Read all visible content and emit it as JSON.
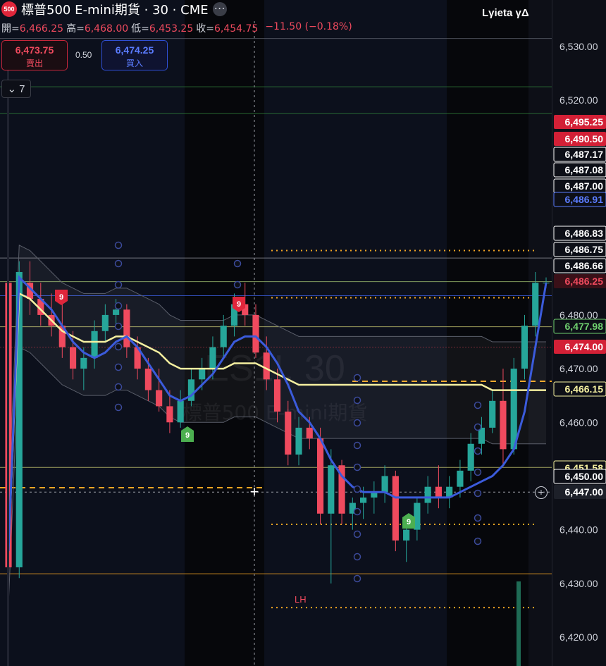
{
  "header": {
    "symbol_badge": "500",
    "title": "標普500 E-mini期貨 · 30 · CME",
    "top_right": "Lγieta γΔ"
  },
  "ohlc": {
    "open_label": "開=",
    "open": "6,466.25",
    "high_label": "高=",
    "high": "6,468.00",
    "low_label": "低=",
    "low": "6,453.25",
    "close_label": "收=",
    "close": "6,454.75",
    "change": "−11.50 (−0.18%)"
  },
  "trade": {
    "sell_price": "6,473.75",
    "sell_label": "賣出",
    "buy_price": "6,474.25",
    "buy_label": "買入",
    "spread": "0.50"
  },
  "indicators": {
    "collapse_count": "7"
  },
  "watermark": {
    "symbol": "ES1!, 30",
    "name": "標普500 E-mini期貨"
  },
  "colors": {
    "background": "#0d0f17",
    "up": "#26a69a",
    "down": "#ef4a5e",
    "vwap": "#f5f0a0",
    "fast_ma": "#3b5bdb",
    "orange": "#f5a623"
  },
  "chart_data": {
    "type": "candlestick",
    "symbol": "ES1!",
    "timeframe": "30",
    "ylim": [
      6416,
      6540
    ],
    "y_ticks": [
      6530,
      6520,
      6480,
      6470,
      6460,
      6440,
      6430,
      6420
    ],
    "price_labels": [
      {
        "text": "6,495.25",
        "style": "red"
      },
      {
        "text": "6,490.50",
        "style": "red"
      },
      {
        "text": "6,487.17",
        "style": "white"
      },
      {
        "text": "6,487.08",
        "style": "white"
      },
      {
        "text": "6,487.00",
        "style": "white"
      },
      {
        "text": "6,486.91",
        "style": "blue"
      },
      {
        "text": "6,486.83",
        "style": "white"
      },
      {
        "text": "6,486.75",
        "style": "white"
      },
      {
        "text": "6,486.66",
        "style": "white"
      },
      {
        "text": "6,486.25",
        "style": "dark-red"
      },
      {
        "text": "6,477.98",
        "style": "green"
      },
      {
        "text": "6,474.00",
        "style": "red"
      },
      {
        "text": "6,466.15",
        "style": "yellow"
      },
      {
        "text": "6,451.58",
        "style": "yellow"
      },
      {
        "text": "6,450.00",
        "style": "white"
      },
      {
        "text": "6,447.00",
        "style": "crosshair"
      }
    ],
    "candles": [
      [
        6486,
        6491,
        6430,
        6433
      ],
      [
        6433,
        6490,
        6431,
        6488
      ],
      [
        6486,
        6490,
        6480,
        6483
      ],
      [
        6483,
        6486,
        6478,
        6480
      ],
      [
        6480,
        6484,
        6476,
        6478
      ],
      [
        6478,
        6482,
        6472,
        6474
      ],
      [
        6474,
        6477,
        6468,
        6470
      ],
      [
        6470,
        6474,
        6466,
        6472
      ],
      [
        6472,
        6479,
        6470,
        6477
      ],
      [
        6477,
        6482,
        6475,
        6480
      ],
      [
        6480,
        6483,
        6478,
        6481
      ],
      [
        6481,
        6482,
        6472,
        6474
      ],
      [
        6474,
        6476,
        6468,
        6470
      ],
      [
        6470,
        6472,
        6464,
        6466
      ],
      [
        6466,
        6470,
        6462,
        6463
      ],
      [
        6463,
        6466,
        6458,
        6460
      ],
      [
        6460,
        6466,
        6459,
        6464
      ],
      [
        6464,
        6470,
        6463,
        6468
      ],
      [
        6468,
        6472,
        6466,
        6470
      ],
      [
        6470,
        6476,
        6468,
        6474
      ],
      [
        6474,
        6480,
        6472,
        6478
      ],
      [
        6478,
        6484,
        6476,
        6482
      ],
      [
        6482,
        6486,
        6478,
        6480
      ],
      [
        6480,
        6482,
        6472,
        6473
      ],
      [
        6473,
        6476,
        6466,
        6468
      ],
      [
        6468,
        6470,
        6460,
        6462
      ],
      [
        6462,
        6464,
        6452,
        6454
      ],
      [
        6454,
        6461,
        6452,
        6459
      ],
      [
        6459,
        6461,
        6455,
        6457
      ],
      [
        6457,
        6459,
        6441,
        6443
      ],
      [
        6443,
        6455,
        6430,
        6452
      ],
      [
        6452,
        6453,
        6441,
        6443
      ],
      [
        6443,
        6446,
        6440,
        6445
      ],
      [
        6445,
        6448,
        6442,
        6446
      ],
      [
        6446,
        6449,
        6443,
        6447
      ],
      [
        6447,
        6452,
        6445,
        6450
      ],
      [
        6450,
        6451,
        6436,
        6438
      ],
      [
        6438,
        6442,
        6434,
        6440
      ],
      [
        6440,
        6446,
        6438,
        6445
      ],
      [
        6445,
        6450,
        6443,
        6448
      ],
      [
        6448,
        6452,
        6444,
        6446
      ],
      [
        6446,
        6450,
        6444,
        6448
      ],
      [
        6448,
        6453,
        6446,
        6451
      ],
      [
        6451,
        6458,
        6449,
        6456
      ],
      [
        6456,
        6461,
        6454,
        6459
      ],
      [
        6459,
        6466,
        6458,
        6464
      ],
      [
        6464,
        6470,
        6452,
        6455
      ],
      [
        6455,
        6472,
        6454,
        6470
      ],
      [
        6470,
        6480,
        6468,
        6478
      ],
      [
        6478,
        6488,
        6476,
        6486
      ],
      [
        6486,
        6487,
        6485,
        6486
      ]
    ],
    "vwap": [
      6436,
      6484,
      6483,
      6481,
      6479,
      6477,
      6476,
      6475,
      6475,
      6475,
      6476,
      6476,
      6475,
      6474,
      6473,
      6471,
      6470,
      6470,
      6470,
      6470,
      6470,
      6471,
      6471,
      6471,
      6470,
      6469,
      6468,
      6467,
      6467,
      6467,
      6467,
      6467,
      6467,
      6467,
      6467,
      6467,
      6467,
      6467,
      6467,
      6467,
      6467,
      6467,
      6467,
      6467,
      6467,
      6466,
      6466,
      6466,
      6466,
      6466,
      6466
    ],
    "fast_ma": [
      6436,
      6487,
      6485,
      6483,
      6481,
      6478,
      6475,
      6473,
      6472,
      6473,
      6475,
      6476,
      6474,
      6471,
      6468,
      6465,
      6464,
      6465,
      6467,
      6469,
      6472,
      6475,
      6476,
      6476,
      6474,
      6471,
      6467,
      6462,
      6460,
      6457,
      6453,
      6450,
      6448,
      6447,
      6447,
      6447,
      6446,
      6446,
      6446,
      6446,
      6446,
      6446,
      6447,
      6448,
      6449,
      6450,
      6452,
      6455,
      6462,
      6474,
      6486
    ],
    "annotations": [
      "LH",
      "9",
      "9",
      "9",
      "9"
    ],
    "annotation_positions": {
      "LH": [
        31,
        6428
      ],
      "9_red_1": [
        4,
        6483
      ],
      "9_red_2": [
        18,
        6484
      ],
      "9_green_1": [
        14,
        6460
      ],
      "9_green_2": [
        39,
        6442
      ]
    },
    "crosshair_price": 6447,
    "vertical_marker_candle": 19
  }
}
